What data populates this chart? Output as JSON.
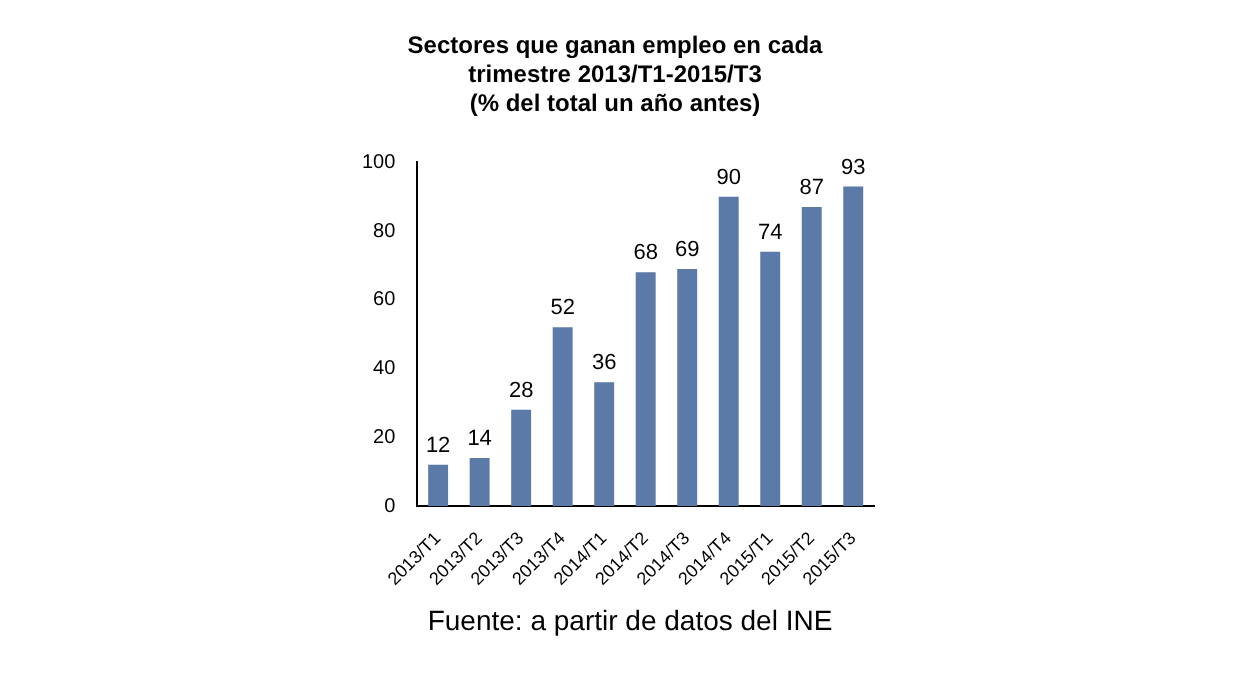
{
  "chart_data": {
    "type": "bar",
    "title": "Sectores que ganan empleo en cada\ntrimestre 2013/T1-2015/T3\n(% del total un año antes)",
    "categories": [
      "2013/T1",
      "2013/T2",
      "2013/T3",
      "2013/T4",
      "2014/T1",
      "2014/T2",
      "2014/T3",
      "2014/T4",
      "2015/T1",
      "2015/T2",
      "2015/T3"
    ],
    "values": [
      12,
      14,
      28,
      52,
      36,
      68,
      69,
      90,
      74,
      87,
      93
    ],
    "color": "#5b7aa8",
    "ylim": [
      0,
      100
    ],
    "yticks": [
      0,
      20,
      40,
      60,
      80,
      100
    ],
    "grid": false,
    "legend": false,
    "data_labels": true,
    "annotations": [
      "Fuente: a partir de datos del INE"
    ]
  }
}
